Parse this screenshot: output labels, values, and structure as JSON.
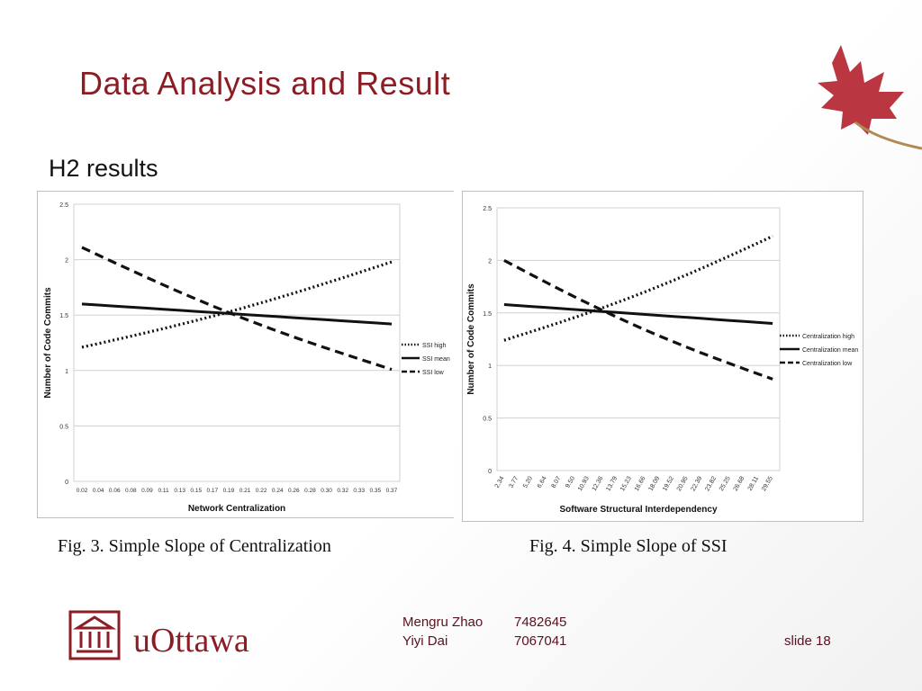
{
  "slide": {
    "title": "Data Analysis and Result",
    "subtitle": "H2 results",
    "captions": [
      "Fig. 3. Simple Slope of Centralization",
      "Fig. 4. Simple Slope of SSI"
    ],
    "footer": {
      "logo_text": "uOttawa",
      "authors": [
        {
          "name": "Mengru Zhao",
          "id": "7482645"
        },
        {
          "name": "Yiyi Dai",
          "id": "7067041"
        }
      ],
      "slide_label": "slide 18"
    },
    "colors": {
      "title": "#8c1d24",
      "leaf": "#b3202b",
      "footer_text": "#5a1020"
    }
  },
  "chart_data": [
    {
      "type": "line",
      "xlabel": "Network Centralization",
      "ylabel": "Number of Code Commits",
      "ylim": [
        0,
        2.5
      ],
      "yticks": [
        "0",
        "0.5",
        "1",
        "1.5",
        "2",
        "2.5"
      ],
      "x": [
        "0.02",
        "0.04",
        "0.06",
        "0.08",
        "0.09",
        "0.11",
        "0.13",
        "0.15",
        "0.17",
        "0.19",
        "0.21",
        "0.22",
        "0.24",
        "0.26",
        "0.28",
        "0.30",
        "0.32",
        "0.33",
        "0.35",
        "0.37"
      ],
      "grid": true,
      "legend": "right",
      "series": [
        {
          "name": "SSI high",
          "style": "dotted",
          "start": 1.21,
          "end": 1.98
        },
        {
          "name": "SSI mean",
          "style": "solid",
          "start": 1.6,
          "end": 1.42
        },
        {
          "name": "SSI low",
          "style": "dashed",
          "start": 2.11,
          "end": 1.01
        }
      ]
    },
    {
      "type": "line",
      "xlabel": "Software Structural Interdependency",
      "ylabel": "Number of Code Commits",
      "ylim": [
        0,
        2.5
      ],
      "yticks": [
        "0",
        "0.5",
        "1",
        "1.5",
        "2",
        "2.5"
      ],
      "x": [
        "2.34",
        "3.77",
        "5.20",
        "6.64",
        "8.07",
        "9.50",
        "10.93",
        "12.36",
        "13.79",
        "15.23",
        "16.66",
        "18.09",
        "19.52",
        "20.95",
        "22.39",
        "23.82",
        "25.25",
        "26.68",
        "28.11",
        "29.55"
      ],
      "grid": true,
      "legend": "right",
      "series": [
        {
          "name": "Centralization high",
          "style": "dotted",
          "start": 1.24,
          "end": 2.23
        },
        {
          "name": "Centralization mean",
          "style": "solid",
          "start": 1.58,
          "end": 1.4
        },
        {
          "name": "Centralization low",
          "style": "dashed",
          "start": 2.0,
          "end": 0.87
        }
      ]
    }
  ]
}
